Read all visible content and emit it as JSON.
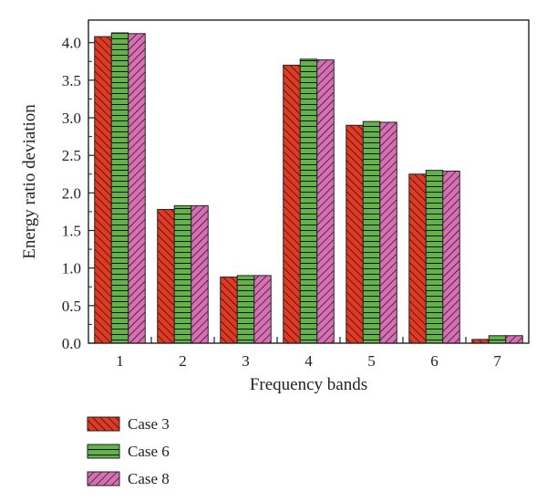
{
  "chart_data": {
    "type": "bar",
    "title": "",
    "xlabel": "Frequency bands",
    "ylabel": "Energy ratio deviation",
    "categories": [
      "1",
      "2",
      "3",
      "4",
      "5",
      "6",
      "7"
    ],
    "ylim": [
      0,
      4.3
    ],
    "yticks": [
      "0.0",
      "0.5",
      "1.0",
      "1.5",
      "2.0",
      "2.5",
      "3.0",
      "3.5",
      "4.0"
    ],
    "grid": false,
    "legend_position": "bottom-left, below plot",
    "series": [
      {
        "name": "Case 3",
        "color": "#e23a22",
        "pattern": "forward diagonal hatch",
        "values": [
          4.08,
          1.78,
          0.88,
          3.7,
          2.9,
          2.25,
          0.05
        ]
      },
      {
        "name": "Case 6",
        "color": "#63b34a",
        "pattern": "horizontal lines",
        "values": [
          4.13,
          1.83,
          0.9,
          3.78,
          2.95,
          2.3,
          0.1
        ]
      },
      {
        "name": "Case 8",
        "color": "#d86fb4",
        "pattern": "back diagonal hatch",
        "values": [
          4.12,
          1.83,
          0.9,
          3.77,
          2.94,
          2.29,
          0.1
        ]
      }
    ]
  }
}
